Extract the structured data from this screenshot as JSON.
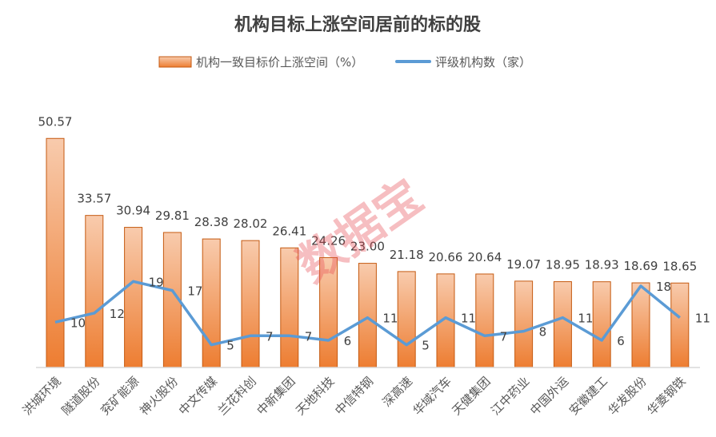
{
  "chart_data": {
    "type": "bar+line",
    "title": "机构目标上涨空间居前的标的股",
    "categories": [
      "洪城环境",
      "隧道股份",
      "兖矿能源",
      "神火股份",
      "中文传媒",
      "兰花科创",
      "中新集团",
      "天地科技",
      "中信特钢",
      "深高速",
      "华域汽车",
      "天健集团",
      "江中药业",
      "中国外运",
      "安徽建工",
      "华发股份",
      "华菱钢铁"
    ],
    "series": [
      {
        "name": "机构一致目标价上涨空间（%）",
        "type": "bar",
        "color": "#ED7D31",
        "values": [
          50.57,
          33.57,
          30.94,
          29.81,
          28.38,
          28.02,
          26.41,
          24.26,
          23.0,
          21.18,
          20.66,
          20.64,
          19.07,
          18.95,
          18.93,
          18.69,
          18.65
        ],
        "labels": [
          "50.57",
          "33.57",
          "30.94",
          "29.81",
          "28.38",
          "28.02",
          "26.41",
          "24.26",
          "23.00",
          "21.18",
          "20.66",
          "20.64",
          "19.07",
          "18.95",
          "18.93",
          "18.69",
          "18.65"
        ]
      },
      {
        "name": "评级机构数（家）",
        "type": "line",
        "color": "#5B9BD5",
        "values": [
          10,
          12,
          19,
          17,
          5,
          7,
          7,
          6,
          11,
          5,
          11,
          7,
          8,
          11,
          6,
          18,
          11
        ]
      }
    ],
    "legend": "top",
    "grid": false,
    "watermark": "数据宝"
  }
}
